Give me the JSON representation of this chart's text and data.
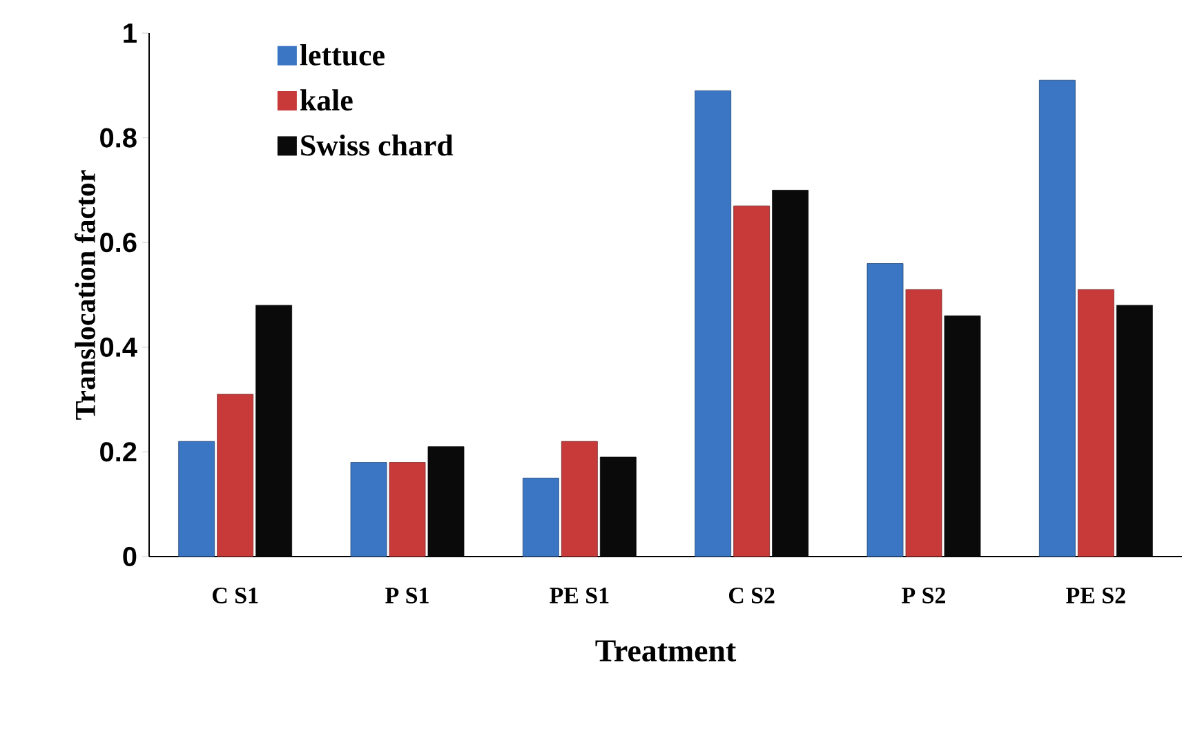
{
  "chart_data": {
    "type": "bar",
    "xlabel": "Treatment",
    "ylabel": "Translocation factor",
    "categories": [
      "C S1",
      "P S1",
      "PE S1",
      "C S2",
      "P S2",
      "PE S2"
    ],
    "series": [
      {
        "name": "lettuce",
        "color": "#3a76c4",
        "values": [
          0.22,
          0.18,
          0.15,
          0.89,
          0.56,
          0.91
        ]
      },
      {
        "name": "kale",
        "color": "#c83a3a",
        "values": [
          0.31,
          0.18,
          0.22,
          0.67,
          0.51,
          0.51
        ]
      },
      {
        "name": "Swiss  chard",
        "color": "#0a0a0a",
        "values": [
          0.48,
          0.21,
          0.19,
          0.7,
          0.46,
          0.48
        ]
      }
    ],
    "ylim": [
      0,
      1
    ],
    "yticks": [
      0,
      0.2,
      0.4,
      0.6,
      0.8,
      1
    ],
    "grid": false,
    "legend": "top left"
  }
}
